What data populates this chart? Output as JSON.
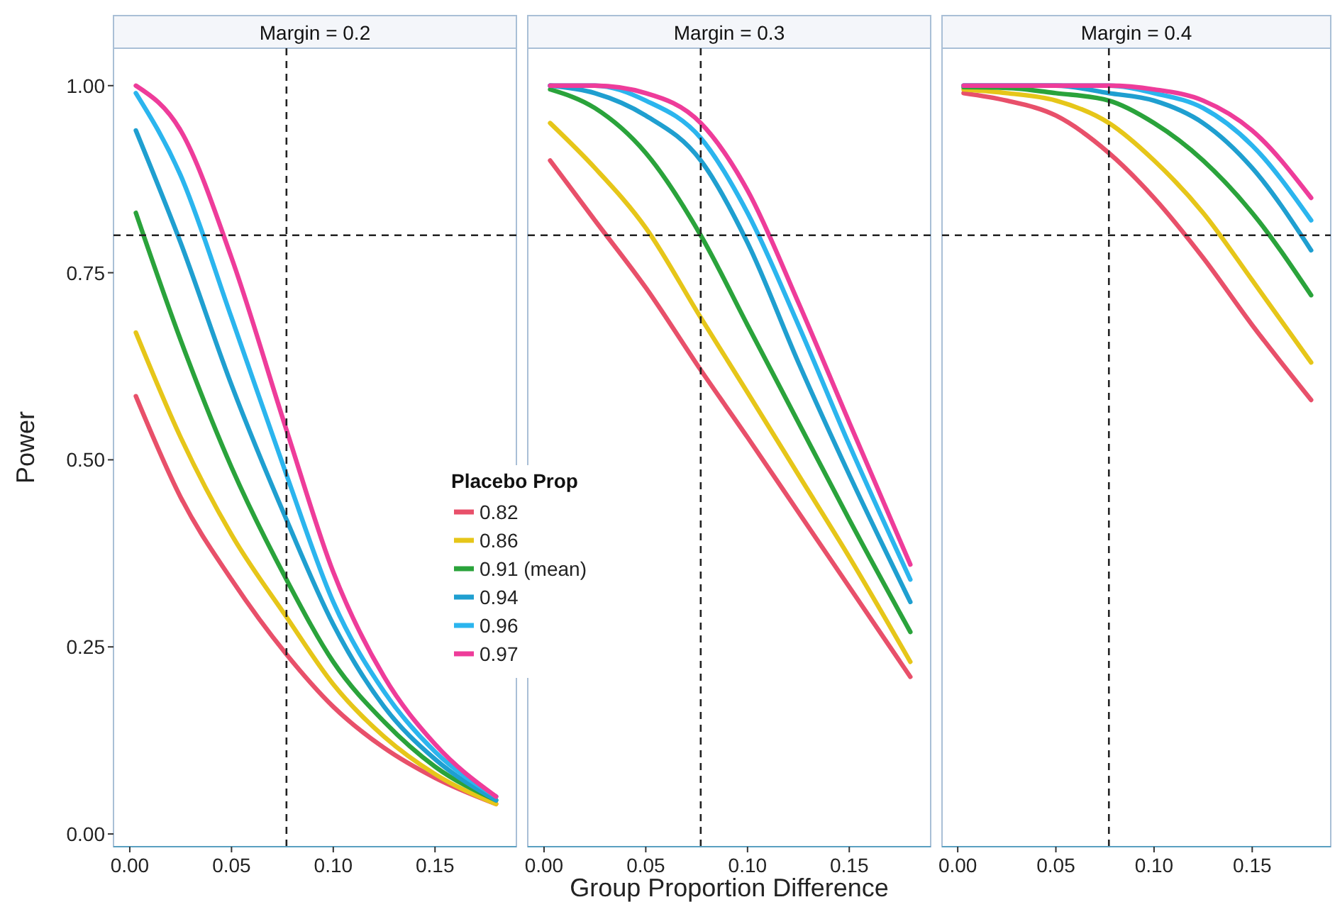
{
  "chart_data": [
    {
      "type": "line",
      "title": "Margin = 0.2",
      "ylabel": "Power",
      "legend_title": "Placebo Prop",
      "legend": "right",
      "line_style": "solid",
      "x": [
        0.003,
        0.025,
        0.05,
        0.077,
        0.1,
        0.125,
        0.15,
        0.18
      ],
      "xlim": [
        -0.008,
        0.19
      ],
      "ylim": [
        -0.017,
        1.05
      ],
      "xticks": [
        {
          "value": 0,
          "label": "0.00"
        },
        {
          "value": 0.05,
          "label": "0.05"
        },
        {
          "value": 0.1,
          "label": "0.10"
        },
        {
          "value": 0.15,
          "label": "0.15"
        }
      ],
      "yticks": [
        {
          "value": 0,
          "label": "0.00"
        },
        {
          "value": 0.25,
          "label": "0.25"
        },
        {
          "value": 0.5,
          "label": "0.50"
        },
        {
          "value": 0.75,
          "label": "0.75"
        },
        {
          "value": 1,
          "label": "1.00"
        }
      ],
      "ref_lines": [
        {
          "axis": "x",
          "value": 0.077,
          "line_style": "dashed",
          "color": "#222222"
        },
        {
          "axis": "y",
          "value": 0.8,
          "line_style": "dashed",
          "color": "#222222"
        }
      ],
      "series": [
        {
          "name": "0.82",
          "color": "#e8506a",
          "values": [
            0.585,
            0.45,
            0.34,
            0.24,
            0.17,
            0.115,
            0.075,
            0.04
          ]
        },
        {
          "name": "0.86",
          "color": "#e6c619",
          "values": [
            0.67,
            0.53,
            0.4,
            0.29,
            0.2,
            0.13,
            0.08,
            0.04
          ]
        },
        {
          "name": "0.91 (mean)",
          "color": "#2aa33b",
          "values": [
            0.83,
            0.66,
            0.49,
            0.34,
            0.23,
            0.15,
            0.09,
            0.045
          ]
        },
        {
          "name": "0.94",
          "color": "#1f9fd0",
          "values": [
            0.94,
            0.79,
            0.6,
            0.42,
            0.28,
            0.17,
            0.1,
            0.045
          ]
        },
        {
          "name": "0.96",
          "color": "#2bb5ee",
          "values": [
            0.99,
            0.88,
            0.69,
            0.48,
            0.31,
            0.19,
            0.11,
            0.05
          ]
        },
        {
          "name": "0.97",
          "color": "#ee3c9a",
          "values": [
            1.0,
            0.94,
            0.77,
            0.54,
            0.35,
            0.21,
            0.12,
            0.05
          ]
        }
      ]
    },
    {
      "type": "line",
      "title": "Margin = 0.3",
      "xlabel": "Group Proportion Difference",
      "tick_labels": "x",
      "line_style": "solid",
      "x": [
        0.003,
        0.025,
        0.05,
        0.077,
        0.1,
        0.125,
        0.15,
        0.18
      ],
      "xlim": [
        -0.008,
        0.19
      ],
      "ylim": [
        -0.017,
        1.05
      ],
      "xticks": [
        {
          "value": 0,
          "label": "0.00"
        },
        {
          "value": 0.05,
          "label": "0.05"
        },
        {
          "value": 0.1,
          "label": "0.10"
        },
        {
          "value": 0.15,
          "label": "0.15"
        }
      ],
      "ref_lines": [
        {
          "axis": "x",
          "value": 0.077,
          "line_style": "dashed",
          "color": "#222222"
        },
        {
          "axis": "y",
          "value": 0.8,
          "line_style": "dashed",
          "color": "#222222"
        }
      ],
      "series": [
        {
          "color": "#e8506a",
          "values": [
            0.9,
            0.82,
            0.73,
            0.62,
            0.53,
            0.43,
            0.33,
            0.21
          ]
        },
        {
          "color": "#e6c619",
          "values": [
            0.95,
            0.89,
            0.81,
            0.69,
            0.59,
            0.48,
            0.37,
            0.23
          ]
        },
        {
          "color": "#2aa33b",
          "values": [
            0.995,
            0.97,
            0.91,
            0.8,
            0.68,
            0.55,
            0.42,
            0.27
          ]
        },
        {
          "color": "#1f9fd0",
          "values": [
            1.0,
            0.99,
            0.96,
            0.9,
            0.79,
            0.63,
            0.48,
            0.31
          ]
        },
        {
          "color": "#2bb5ee",
          "values": [
            1.0,
            1.0,
            0.98,
            0.93,
            0.83,
            0.68,
            0.52,
            0.34
          ]
        },
        {
          "color": "#ee3c9a",
          "values": [
            1.0,
            1.0,
            0.99,
            0.95,
            0.86,
            0.71,
            0.55,
            0.36
          ]
        }
      ]
    },
    {
      "type": "line",
      "title": "Margin = 0.4",
      "tick_labels": "x",
      "line_style": "solid",
      "x": [
        0.003,
        0.025,
        0.05,
        0.077,
        0.1,
        0.125,
        0.15,
        0.18
      ],
      "xlim": [
        -0.008,
        0.19
      ],
      "ylim": [
        -0.017,
        1.05
      ],
      "xticks": [
        {
          "value": 0,
          "label": "0.00"
        },
        {
          "value": 0.05,
          "label": "0.05"
        },
        {
          "value": 0.1,
          "label": "0.10"
        },
        {
          "value": 0.15,
          "label": "0.15"
        }
      ],
      "ref_lines": [
        {
          "axis": "x",
          "value": 0.077,
          "line_style": "dashed",
          "color": "#222222"
        },
        {
          "axis": "y",
          "value": 0.8,
          "line_style": "dashed",
          "color": "#222222"
        }
      ],
      "series": [
        {
          "color": "#e8506a",
          "values": [
            0.99,
            0.98,
            0.96,
            0.91,
            0.85,
            0.77,
            0.68,
            0.58
          ]
        },
        {
          "color": "#e6c619",
          "values": [
            0.995,
            0.99,
            0.98,
            0.95,
            0.9,
            0.83,
            0.74,
            0.63
          ]
        },
        {
          "color": "#2aa33b",
          "values": [
            0.998,
            0.997,
            0.99,
            0.98,
            0.95,
            0.9,
            0.83,
            0.72
          ]
        },
        {
          "color": "#1f9fd0",
          "values": [
            1.0,
            1.0,
            1.0,
            0.99,
            0.98,
            0.95,
            0.89,
            0.78
          ]
        },
        {
          "color": "#2bb5ee",
          "values": [
            1.0,
            1.0,
            1.0,
            1.0,
            0.99,
            0.97,
            0.92,
            0.82
          ]
        },
        {
          "color": "#ee3c9a",
          "values": [
            1.0,
            1.0,
            1.0,
            1.0,
            0.995,
            0.98,
            0.94,
            0.85
          ]
        }
      ]
    }
  ]
}
